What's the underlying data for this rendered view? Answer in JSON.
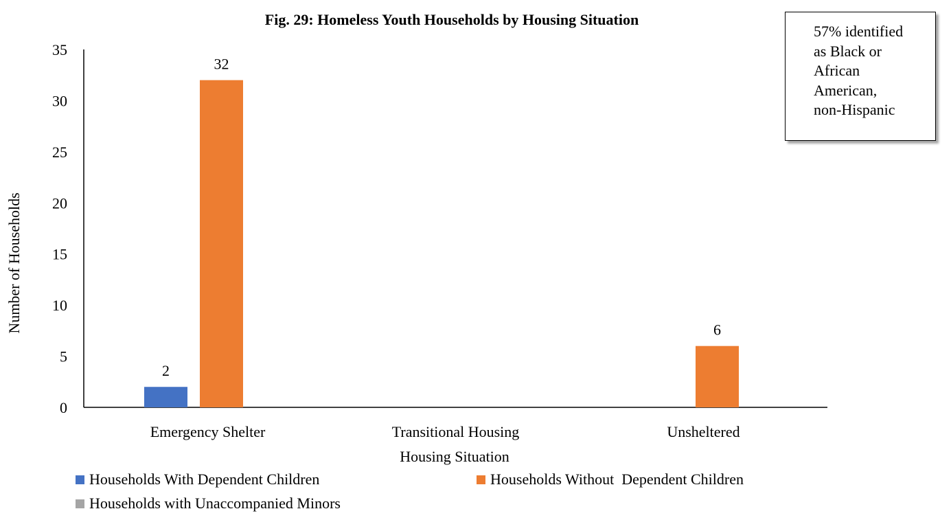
{
  "chart_data": {
    "type": "bar",
    "title": "Fig. 29: Homeless Youth Households by Housing Situation",
    "xlabel": "Housing Situation",
    "ylabel": "Number of Households",
    "categories": [
      "Emergency Shelter",
      "Transitional Housing",
      "Unsheltered"
    ],
    "series": [
      {
        "name": "Households With Dependent Children",
        "color": "#4472C4",
        "values": [
          2,
          0,
          0
        ],
        "labels": [
          "2",
          "",
          ""
        ]
      },
      {
        "name": "Households Without  Dependent Children",
        "color": "#ED7D31",
        "values": [
          32,
          0,
          6
        ],
        "labels": [
          "32",
          "",
          "6"
        ]
      },
      {
        "name": "Households with Unaccompanied Minors",
        "color": "#A5A5A5",
        "values": [
          0,
          0,
          0
        ],
        "labels": [
          "",
          "",
          ""
        ]
      }
    ],
    "ylim": [
      0,
      35
    ],
    "yticks": [
      "0",
      "5",
      "10",
      "15",
      "20",
      "25",
      "30",
      "35"
    ],
    "grid": false,
    "legend_position": "bottom"
  },
  "callout": {
    "lines": [
      "57% identified",
      "as Black or",
      "African",
      "American,",
      "non-Hispanic"
    ]
  }
}
